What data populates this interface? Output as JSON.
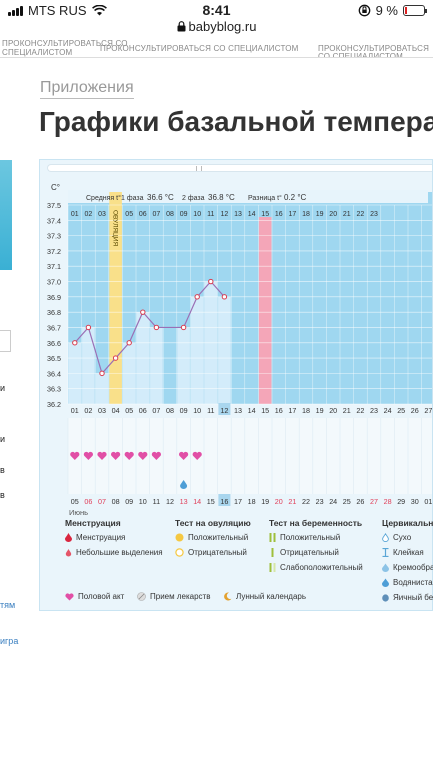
{
  "status_bar": {
    "carrier": "MTS RUS",
    "time": "8:41",
    "battery": "9 %"
  },
  "browser": {
    "url": "babyblog.ru"
  },
  "ad_strip": [
    "ПРОКОНСУЛЬТИРОВАТЬСЯ СО",
    "СПЕЦИАЛИСТОМ",
    "ПРОКОНСУЛЬТИРОВАТЬСЯ СО СПЕЦИАЛИСТОМ",
    "ПРОКОНСУЛЬТИРОВАТЬСЯ СО СПЕЦИАЛИСТОМ"
  ],
  "sidebar": {
    "texts": [
      "и",
      "и",
      "в",
      "в"
    ],
    "links": [
      "тям",
      "игра"
    ]
  },
  "breadcrumb": "Приложения",
  "page_title": "Графики базальной температуры",
  "chart_data": {
    "type": "line",
    "y_unit": "C°",
    "ylim": [
      36.2,
      37.5
    ],
    "y_ticks": [
      "37.5",
      "37.4",
      "37.3",
      "37.2",
      "37.1",
      "37.0",
      "36.9",
      "36.8",
      "36.7",
      "36.6",
      "36.5",
      "36.4",
      "36.3",
      "36.2"
    ],
    "cycle_days": [
      "01",
      "02",
      "03",
      "04",
      "05",
      "06",
      "07",
      "08",
      "09",
      "10",
      "11",
      "12",
      "13",
      "14",
      "15",
      "16",
      "17",
      "18",
      "19",
      "20",
      "21",
      "22",
      "23"
    ],
    "bottom_cycle_days": [
      "01",
      "02",
      "03",
      "04",
      "05",
      "06",
      "07",
      "08",
      "09",
      "10",
      "11",
      "12",
      "13",
      "14",
      "15",
      "16",
      "17",
      "18",
      "19",
      "20",
      "21",
      "22",
      "23",
      "24",
      "25",
      "26",
      "27"
    ],
    "dates": [
      "05",
      "06",
      "07",
      "08",
      "09",
      "10",
      "11",
      "12",
      "13",
      "14",
      "15",
      "16",
      "17",
      "18",
      "19",
      "20",
      "21",
      "22",
      "23",
      "24",
      "25",
      "26",
      "27",
      "28",
      "29",
      "30",
      "01"
    ],
    "date_red": [
      1,
      2,
      8,
      9,
      15,
      16,
      22,
      23
    ],
    "month": "Июнь",
    "summary": {
      "average_label": "Средняя t°",
      "phase1_label": "1 фаза",
      "phase1_value": "36.6 °C",
      "phase2_label": "2 фаза",
      "phase2_value": "36.8 °C",
      "diff_label": "Разница t°",
      "diff_value": "0.2 °C"
    },
    "ovulation_label": "ОВУЛЯЦИЯ",
    "ovulation_day": 4,
    "highlight_day": 12,
    "highlight_date_index": 11,
    "marked_day": 15,
    "series": [
      {
        "x": [
          1,
          2,
          3,
          4,
          5,
          6,
          7,
          9,
          10,
          11,
          12
        ],
        "y": [
          36.6,
          36.7,
          36.4,
          36.5,
          36.6,
          36.8,
          36.7,
          36.7,
          36.9,
          37.0,
          36.9
        ]
      }
    ],
    "hearts_days": [
      1,
      2,
      3,
      4,
      5,
      6,
      7,
      9,
      10
    ],
    "drop_day": 9
  },
  "legend": {
    "groups": [
      {
        "title": "Менструация",
        "items": [
          "Менструация",
          "Небольшие выделения"
        ]
      },
      {
        "title": "Тест на овуляцию",
        "items": [
          "Положительный",
          "Отрицательный"
        ]
      },
      {
        "title": "Тест на беременность",
        "items": [
          "Положительный",
          "Отрицательный",
          "Слабоположительный"
        ]
      },
      {
        "title": "Цервикальна",
        "items": [
          "Сухо",
          "Клейкая",
          "Кремообра",
          "Водяниста",
          "Яичный бе"
        ]
      }
    ],
    "bottom": [
      "Половой акт",
      "Прием лекарств",
      "Лунный календарь"
    ]
  },
  "colors": {
    "chart_blue": "#9fd7f0",
    "bar_light": "#d3ecfa",
    "ovulation_yellow": "#f9e08a",
    "marked_pink": "#f4a6b8",
    "line": "#9b6fb5",
    "heart": "#e14fa6",
    "red_date": "#e0405a"
  }
}
